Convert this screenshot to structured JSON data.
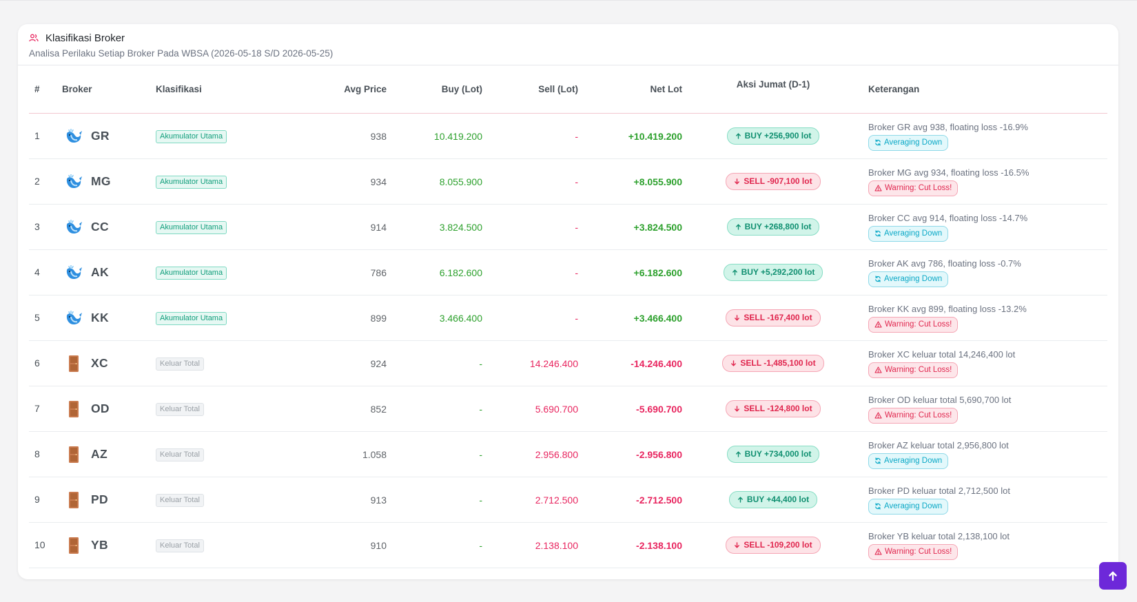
{
  "card": {
    "title": "Klasifikasi Broker",
    "subtitle": "Analisa Perilaku Setiap Broker Pada WBSA (2026-05-18 S/D 2026-05-25)",
    "title_icon": "users-icon"
  },
  "table": {
    "headers": {
      "num": "#",
      "broker": "Broker",
      "klasifikasi": "Klasifikasi",
      "avg_price": "Avg Price",
      "buy": "Buy (Lot)",
      "sell": "Sell (Lot)",
      "net": "Net Lot",
      "aksi": "Aksi Jumat (D-1)",
      "keterangan": "Keterangan"
    },
    "rows": [
      {
        "num": "1",
        "code": "GR",
        "icon": "whale-icon",
        "klas": "Akumulator Utama",
        "klas_type": "acc",
        "avg": "938",
        "buy": "10.419.200",
        "sell": "-",
        "net": "+10.419.200",
        "aksi": "BUY +256,900 lot",
        "aksi_type": "buy",
        "ket": "Broker GR avg 938, floating loss -16.9%",
        "ket_badge": "Averaging Down",
        "ket_type": "avg"
      },
      {
        "num": "2",
        "code": "MG",
        "icon": "whale-icon",
        "klas": "Akumulator Utama",
        "klas_type": "acc",
        "avg": "934",
        "buy": "8.055.900",
        "sell": "-",
        "net": "+8.055.900",
        "aksi": "SELL -907,100 lot",
        "aksi_type": "sell",
        "ket": "Broker MG avg 934, floating loss -16.5%",
        "ket_badge": "Warning: Cut Loss!",
        "ket_type": "warn"
      },
      {
        "num": "3",
        "code": "CC",
        "icon": "whale-icon",
        "klas": "Akumulator Utama",
        "klas_type": "acc",
        "avg": "914",
        "buy": "3.824.500",
        "sell": "-",
        "net": "+3.824.500",
        "aksi": "BUY +268,800 lot",
        "aksi_type": "buy",
        "ket": "Broker CC avg 914, floating loss -14.7%",
        "ket_badge": "Averaging Down",
        "ket_type": "avg"
      },
      {
        "num": "4",
        "code": "AK",
        "icon": "whale-icon",
        "klas": "Akumulator Utama",
        "klas_type": "acc",
        "avg": "786",
        "buy": "6.182.600",
        "sell": "-",
        "net": "+6.182.600",
        "aksi": "BUY +5,292,200 lot",
        "aksi_type": "buy",
        "ket": "Broker AK avg 786, floating loss -0.7%",
        "ket_badge": "Averaging Down",
        "ket_type": "avg"
      },
      {
        "num": "5",
        "code": "KK",
        "icon": "whale-icon",
        "klas": "Akumulator Utama",
        "klas_type": "acc",
        "avg": "899",
        "buy": "3.466.400",
        "sell": "-",
        "net": "+3.466.400",
        "aksi": "SELL -167,400 lot",
        "aksi_type": "sell",
        "ket": "Broker KK avg 899, floating loss -13.2%",
        "ket_badge": "Warning: Cut Loss!",
        "ket_type": "warn"
      },
      {
        "num": "6",
        "code": "XC",
        "icon": "door-icon",
        "klas": "Keluar Total",
        "klas_type": "out",
        "avg": "924",
        "buy": "-",
        "sell": "14.246.400",
        "net": "-14.246.400",
        "aksi": "SELL -1,485,100 lot",
        "aksi_type": "sell",
        "ket": "Broker XC keluar total 14,246,400 lot",
        "ket_badge": "Warning: Cut Loss!",
        "ket_type": "warn"
      },
      {
        "num": "7",
        "code": "OD",
        "icon": "door-icon",
        "klas": "Keluar Total",
        "klas_type": "out",
        "avg": "852",
        "buy": "-",
        "sell": "5.690.700",
        "net": "-5.690.700",
        "aksi": "SELL -124,800 lot",
        "aksi_type": "sell",
        "ket": "Broker OD keluar total 5,690,700 lot",
        "ket_badge": "Warning: Cut Loss!",
        "ket_type": "warn"
      },
      {
        "num": "8",
        "code": "AZ",
        "icon": "door-icon",
        "klas": "Keluar Total",
        "klas_type": "out",
        "avg": "1.058",
        "buy": "-",
        "sell": "2.956.800",
        "net": "-2.956.800",
        "aksi": "BUY +734,000 lot",
        "aksi_type": "buy",
        "ket": "Broker AZ keluar total 2,956,800 lot",
        "ket_badge": "Averaging Down",
        "ket_type": "avg"
      },
      {
        "num": "9",
        "code": "PD",
        "icon": "door-icon",
        "klas": "Keluar Total",
        "klas_type": "out",
        "avg": "913",
        "buy": "-",
        "sell": "2.712.500",
        "net": "-2.712.500",
        "aksi": "BUY +44,400 lot",
        "aksi_type": "buy",
        "ket": "Broker PD keluar total 2,712,500 lot",
        "ket_badge": "Averaging Down",
        "ket_type": "avg"
      },
      {
        "num": "10",
        "code": "YB",
        "icon": "door-icon",
        "klas": "Keluar Total",
        "klas_type": "out",
        "avg": "910",
        "buy": "-",
        "sell": "2.138.100",
        "net": "-2.138.100",
        "aksi": "SELL -109,200 lot",
        "aksi_type": "sell",
        "ket": "Broker YB keluar total 2,138,100 lot",
        "ket_badge": "Warning: Cut Loss!",
        "ket_type": "warn"
      }
    ]
  },
  "colors": {
    "accent_pink": "#e8255f",
    "positive_green": "#2ca02c",
    "scroll_button": "#6d28d9"
  },
  "scroll_top_icon": "arrow-up-icon"
}
